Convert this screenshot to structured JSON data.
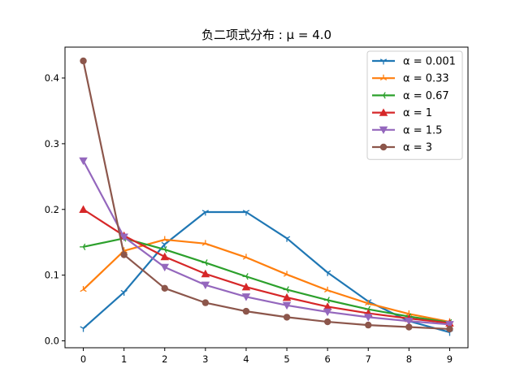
{
  "chart_data": {
    "type": "line",
    "title": "负二项式分布 : μ = 4.0",
    "xlabel": "",
    "ylabel": "",
    "x": [
      0,
      1,
      2,
      3,
      4,
      5,
      6,
      7,
      8,
      9
    ],
    "xlim": [
      -0.45,
      9.45
    ],
    "ylim": [
      -0.0105,
      0.447
    ],
    "xticks": [
      0,
      1,
      2,
      3,
      4,
      5,
      6,
      7,
      8,
      9
    ],
    "yticks": [
      0.0,
      0.1,
      0.2,
      0.3,
      0.4
    ],
    "ytick_labels": [
      "0.0",
      "0.1",
      "0.2",
      "0.3",
      "0.4"
    ],
    "grid": false,
    "legend_position": "top-right",
    "series": [
      {
        "name": "α = 0.001",
        "color": "#1f77b4",
        "marker": "tri-down",
        "values": [
          0.019,
          0.074,
          0.147,
          0.196,
          0.196,
          0.156,
          0.104,
          0.06,
          0.03,
          0.013
        ]
      },
      {
        "name": "α = 0.33",
        "color": "#ff7f0e",
        "marker": "tri-up",
        "values": [
          0.078,
          0.137,
          0.154,
          0.148,
          0.127,
          0.101,
          0.077,
          0.057,
          0.041,
          0.029
        ]
      },
      {
        "name": "α = 0.67",
        "color": "#2ca02c",
        "marker": "tri-left",
        "values": [
          0.143,
          0.156,
          0.139,
          0.119,
          0.098,
          0.078,
          0.062,
          0.048,
          0.037,
          0.028
        ]
      },
      {
        "name": "α = 1",
        "color": "#d62728",
        "marker": "triangle-up",
        "values": [
          0.2,
          0.16,
          0.128,
          0.102,
          0.082,
          0.066,
          0.052,
          0.042,
          0.034,
          0.027
        ]
      },
      {
        "name": "α = 1.5",
        "color": "#9467bd",
        "marker": "triangle-down",
        "values": [
          0.274,
          0.158,
          0.112,
          0.085,
          0.067,
          0.054,
          0.044,
          0.036,
          0.03,
          0.025
        ]
      },
      {
        "name": "α = 3",
        "color": "#8c564b",
        "marker": "circle",
        "values": [
          0.426,
          0.131,
          0.08,
          0.058,
          0.045,
          0.036,
          0.029,
          0.024,
          0.021,
          0.018
        ]
      }
    ]
  }
}
